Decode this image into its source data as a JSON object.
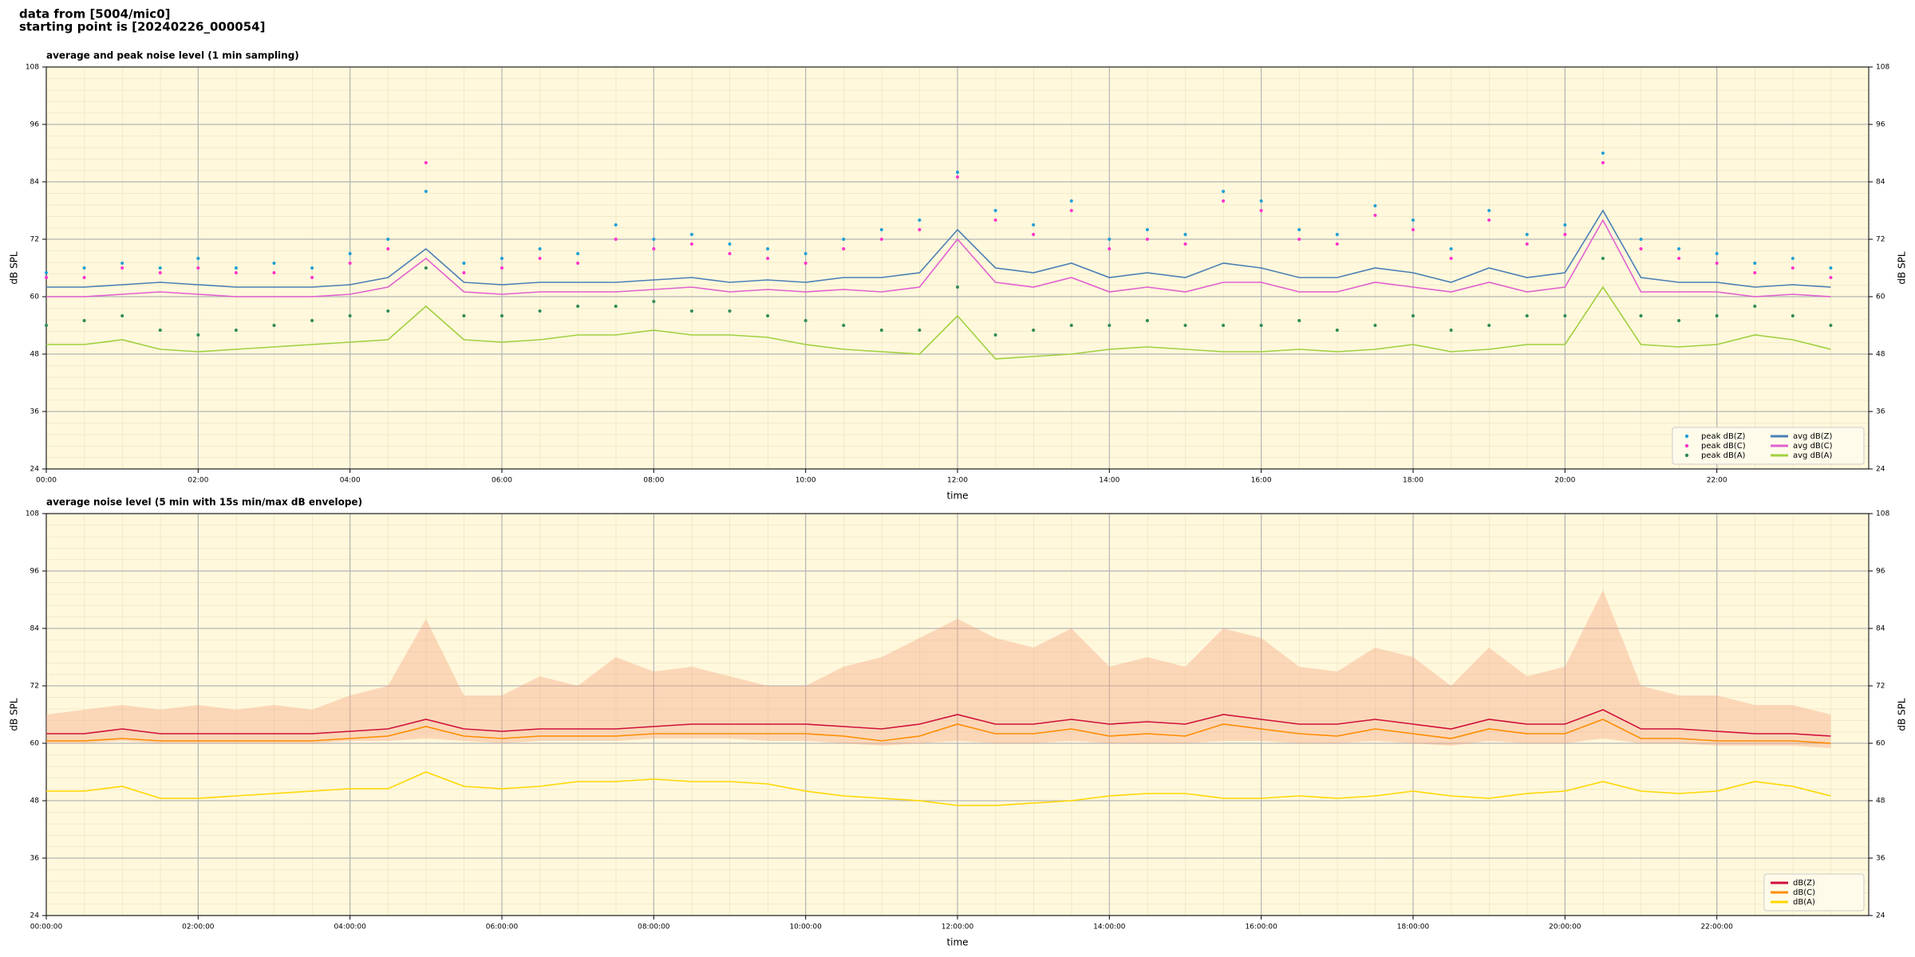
{
  "header": {
    "line1": "data from [5004/mic0]",
    "line2": "starting point is [20240226_000054]"
  },
  "chart_data": [
    {
      "type": "line",
      "title": "average and peak noise level (1 min sampling)",
      "xlabel": "time",
      "ylabel": "dB SPL",
      "xlim": [
        0,
        24
      ],
      "ylim": [
        24,
        108
      ],
      "yticks": [
        24,
        36,
        48,
        60,
        72,
        84,
        96,
        108
      ],
      "grid": true,
      "legend": "lower right",
      "legend_columns": 2,
      "xticks": [
        {
          "value": 0,
          "label": "00:00"
        },
        {
          "value": 2,
          "label": "02:00"
        },
        {
          "value": 4,
          "label": "04:00"
        },
        {
          "value": 6,
          "label": "06:00"
        },
        {
          "value": 8,
          "label": "08:00"
        },
        {
          "value": 10,
          "label": "10:00"
        },
        {
          "value": 12,
          "label": "12:00"
        },
        {
          "value": 14,
          "label": "14:00"
        },
        {
          "value": 16,
          "label": "16:00"
        },
        {
          "value": 18,
          "label": "18:00"
        },
        {
          "value": 20,
          "label": "20:00"
        },
        {
          "value": 22,
          "label": "22:00"
        }
      ],
      "x": [
        0,
        0.5,
        1,
        1.5,
        2,
        2.5,
        3,
        3.5,
        4,
        4.5,
        5,
        5.5,
        6,
        6.5,
        7,
        7.5,
        8,
        8.5,
        9,
        9.5,
        10,
        10.5,
        11,
        11.5,
        12,
        12.5,
        13,
        13.5,
        14,
        14.5,
        15,
        15.5,
        16,
        16.5,
        17,
        17.5,
        18,
        18.5,
        19,
        19.5,
        20,
        20.5,
        21,
        21.5,
        22,
        22.5,
        23,
        23.5
      ],
      "series": [
        {
          "name": "peak dB(Z)",
          "style": "dots",
          "color": "#1f9fd8",
          "values": [
            65,
            66,
            67,
            66,
            68,
            66,
            67,
            66,
            69,
            72,
            82,
            67,
            68,
            70,
            69,
            75,
            72,
            73,
            71,
            70,
            69,
            72,
            74,
            76,
            86,
            78,
            75,
            80,
            72,
            74,
            73,
            82,
            80,
            74,
            73,
            79,
            76,
            70,
            78,
            73,
            75,
            90,
            72,
            70,
            69,
            67,
            68,
            66
          ]
        },
        {
          "name": "peak dB(C)",
          "style": "dots",
          "color": "#ff33cc",
          "values": [
            64,
            64,
            66,
            65,
            66,
            65,
            65,
            64,
            67,
            70,
            88,
            65,
            66,
            68,
            67,
            72,
            70,
            71,
            69,
            68,
            67,
            70,
            72,
            74,
            85,
            76,
            73,
            78,
            70,
            72,
            71,
            80,
            78,
            72,
            71,
            77,
            74,
            68,
            76,
            71,
            73,
            88,
            70,
            68,
            67,
            65,
            66,
            64
          ]
        },
        {
          "name": "peak dB(A)",
          "style": "dots",
          "color": "#2e8b57",
          "values": [
            54,
            55,
            56,
            53,
            52,
            53,
            54,
            55,
            56,
            57,
            66,
            56,
            56,
            57,
            58,
            58,
            59,
            57,
            57,
            56,
            55,
            54,
            53,
            53,
            62,
            52,
            53,
            54,
            54,
            55,
            54,
            54,
            54,
            55,
            53,
            54,
            56,
            53,
            54,
            56,
            56,
            68,
            56,
            55,
            56,
            58,
            56,
            54
          ]
        },
        {
          "name": "avg dB(Z)",
          "style": "line",
          "color": "#4a7fb5",
          "values": [
            62,
            62,
            62.5,
            63,
            62.5,
            62,
            62,
            62,
            62.5,
            64,
            70,
            63,
            62.5,
            63,
            63,
            63,
            63.5,
            64,
            63,
            63.5,
            63,
            64,
            64,
            65,
            74,
            66,
            65,
            67,
            64,
            65,
            64,
            67,
            66,
            64,
            64,
            66,
            65,
            63,
            66,
            64,
            65,
            78,
            64,
            63,
            63,
            62,
            62.5,
            62
          ]
        },
        {
          "name": "avg dB(C)",
          "style": "line",
          "color": "#e060d0",
          "values": [
            60,
            60,
            60.5,
            61,
            60.5,
            60,
            60,
            60,
            60.5,
            62,
            68,
            61,
            60.5,
            61,
            61,
            61,
            61.5,
            62,
            61,
            61.5,
            61,
            61.5,
            61,
            62,
            72,
            63,
            62,
            64,
            61,
            62,
            61,
            63,
            63,
            61,
            61,
            63,
            62,
            61,
            63,
            61,
            62,
            76,
            61,
            61,
            61,
            60,
            60.5,
            60
          ]
        },
        {
          "name": "avg dB(A)",
          "style": "line",
          "color": "#a0d040",
          "values": [
            50,
            50,
            51,
            49,
            48.5,
            49,
            49.5,
            50,
            50.5,
            51,
            58,
            51,
            50.5,
            51,
            52,
            52,
            53,
            52,
            52,
            51.5,
            50,
            49,
            48.5,
            48,
            56,
            47,
            47.5,
            48,
            49,
            49.5,
            49,
            48.5,
            48.5,
            49,
            48.5,
            49,
            50,
            48.5,
            49,
            50,
            50,
            62,
            50,
            49.5,
            50,
            52,
            51,
            49
          ]
        }
      ]
    },
    {
      "type": "line",
      "title": "average noise level (5 min with 15s min/max dB envelope)",
      "xlabel": "time",
      "ylabel": "dB SPL",
      "xlim": [
        0,
        24
      ],
      "ylim": [
        24,
        108
      ],
      "yticks": [
        24,
        36,
        48,
        60,
        72,
        84,
        96,
        108
      ],
      "grid": true,
      "legend": "lower right",
      "legend_columns": 1,
      "xticks": [
        {
          "value": 0,
          "label": "00:00:00"
        },
        {
          "value": 2,
          "label": "02:00:00"
        },
        {
          "value": 4,
          "label": "04:00:00"
        },
        {
          "value": 6,
          "label": "06:00:00"
        },
        {
          "value": 8,
          "label": "08:00:00"
        },
        {
          "value": 10,
          "label": "10:00:00"
        },
        {
          "value": 12,
          "label": "12:00:00"
        },
        {
          "value": 14,
          "label": "14:00:00"
        },
        {
          "value": 16,
          "label": "16:00:00"
        },
        {
          "value": 18,
          "label": "18:00:00"
        },
        {
          "value": 20,
          "label": "20:00:00"
        },
        {
          "value": 22,
          "label": "22:00:00"
        }
      ],
      "x": [
        0,
        0.5,
        1,
        1.5,
        2,
        2.5,
        3,
        3.5,
        4,
        4.5,
        5,
        5.5,
        6,
        6.5,
        7,
        7.5,
        8,
        8.5,
        9,
        9.5,
        10,
        10.5,
        11,
        11.5,
        12,
        12.5,
        13,
        13.5,
        14,
        14.5,
        15,
        15.5,
        16,
        16.5,
        17,
        17.5,
        18,
        18.5,
        19,
        19.5,
        20,
        20.5,
        21,
        21.5,
        22,
        22.5,
        23,
        23.5
      ],
      "envelope": {
        "color": "#f4a582",
        "max": [
          66,
          67,
          68,
          67,
          68,
          67,
          68,
          67,
          70,
          72,
          86,
          70,
          70,
          74,
          72,
          78,
          75,
          76,
          74,
          72,
          72,
          76,
          78,
          82,
          86,
          82,
          80,
          84,
          76,
          78,
          76,
          84,
          82,
          76,
          75,
          80,
          78,
          72,
          80,
          74,
          76,
          92,
          72,
          70,
          70,
          68,
          68,
          66
        ],
        "min": [
          60,
          60,
          60.5,
          60,
          60,
          60,
          60,
          60,
          60.5,
          60.5,
          61,
          60.5,
          60,
          60.5,
          60.5,
          60.5,
          61,
          61,
          61,
          60.5,
          60.5,
          60,
          59.5,
          60,
          60.5,
          60,
          60,
          60.5,
          60,
          60,
          60,
          60.5,
          60.5,
          60,
          60,
          60.5,
          60,
          59.5,
          60.5,
          60,
          60,
          61,
          60,
          60,
          59.5,
          59.5,
          59.5,
          59
        ]
      },
      "series": [
        {
          "name": "dB(Z)",
          "style": "line",
          "color": "#d0103a",
          "values": [
            62,
            62,
            63,
            62,
            62,
            62,
            62,
            62,
            62.5,
            63,
            65,
            63,
            62.5,
            63,
            63,
            63,
            63.5,
            64,
            64,
            64,
            64,
            63.5,
            63,
            64,
            66,
            64,
            64,
            65,
            64,
            64.5,
            64,
            66,
            65,
            64,
            64,
            65,
            64,
            63,
            65,
            64,
            64,
            67,
            63,
            63,
            62.5,
            62,
            62,
            61.5
          ]
        },
        {
          "name": "dB(C)",
          "style": "line",
          "color": "#ff8c00",
          "values": [
            60.5,
            60.5,
            61,
            60.5,
            60.5,
            60.5,
            60.5,
            60.5,
            61,
            61.5,
            63.5,
            61.5,
            61,
            61.5,
            61.5,
            61.5,
            62,
            62,
            62,
            62,
            62,
            61.5,
            60.5,
            61.5,
            64,
            62,
            62,
            63,
            61.5,
            62,
            61.5,
            64,
            63,
            62,
            61.5,
            63,
            62,
            61,
            63,
            62,
            62,
            65,
            61,
            61,
            60.5,
            60.5,
            60.5,
            60
          ]
        },
        {
          "name": "dB(A)",
          "style": "line",
          "color": "#ffd700",
          "values": [
            50,
            50,
            51,
            48.5,
            48.5,
            49,
            49.5,
            50,
            50.5,
            50.5,
            54,
            51,
            50.5,
            51,
            52,
            52,
            52.5,
            52,
            52,
            51.5,
            50,
            49,
            48.5,
            48,
            47,
            47,
            47.5,
            48,
            49,
            49.5,
            49.5,
            48.5,
            48.5,
            49,
            48.5,
            49,
            50,
            49,
            48.5,
            49.5,
            50,
            52,
            50,
            49.5,
            50,
            52,
            51,
            49
          ]
        }
      ]
    }
  ]
}
